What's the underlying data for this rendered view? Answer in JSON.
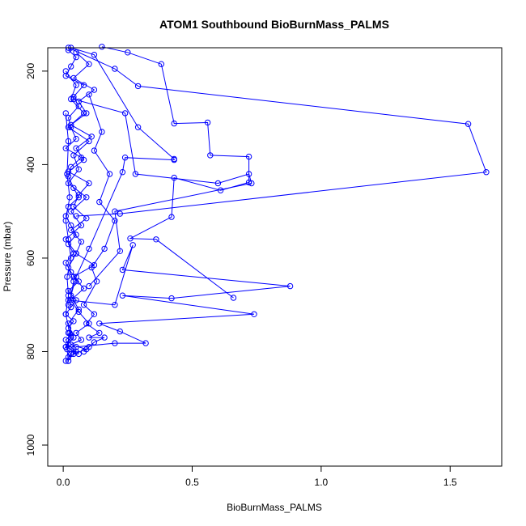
{
  "chart_data": {
    "type": "line",
    "title": "ATOM1 Southbound BioBurnMass_PALMS",
    "xlabel": "BioBurnMass_PALMS",
    "ylabel": "Pressure (mbar)",
    "xlim": [
      -0.06,
      1.7
    ],
    "ylim": [
      1045,
      150
    ],
    "y_reversed": true,
    "x_ticks": [
      0,
      0.5,
      1,
      1.5
    ],
    "x_tick_labels": [
      "0.0",
      "0.5",
      "1.0",
      "1.5"
    ],
    "y_ticks": [
      200,
      400,
      600,
      800,
      1000
    ],
    "y_tick_labels": [
      "200",
      "400",
      "600",
      "800",
      "1000"
    ],
    "grid": false,
    "line_color": "#0000ff",
    "marker": "open-circle",
    "series": [
      {
        "values_x": [
          0.02,
          0.05,
          0.03,
          0.01,
          0.08,
          0.04,
          0.06,
          0.02,
          0.03,
          0.05,
          0.01,
          0.07,
          0.03,
          0.02,
          0.04,
          0.06,
          0.02,
          0.01,
          0.03,
          0.05,
          0.02,
          0.04,
          0.01,
          0.03,
          0.06,
          0.02,
          0.05,
          0.03,
          0.01,
          0.04,
          0.02,
          0.03,
          0.01,
          0.02,
          0.04,
          0.03,
          0.02,
          0.05,
          0.01,
          0.03,
          0.02
        ],
        "values_y": [
          155,
          170,
          190,
          210,
          230,
          255,
          275,
          300,
          320,
          345,
          365,
          385,
          405,
          425,
          450,
          470,
          490,
          510,
          530,
          550,
          570,
          590,
          610,
          630,
          650,
          670,
          690,
          705,
          720,
          735,
          750,
          765,
          775,
          785,
          795,
          805,
          812,
          800,
          790,
          770,
          760
        ]
      },
      {
        "values_x": [
          0.05,
          0.1,
          0.04,
          0.12,
          0.06,
          0.09,
          0.03,
          0.11,
          0.05,
          0.08,
          0.02,
          0.1,
          0.06,
          0.04,
          0.09,
          0.03,
          0.07,
          0.05,
          0.12,
          0.04,
          0.08,
          0.03,
          0.06,
          0.1,
          0.05,
          0.07,
          0.03,
          0.09,
          0.04,
          0.06
        ],
        "values_y": [
          160,
          185,
          215,
          240,
          265,
          290,
          315,
          340,
          365,
          390,
          415,
          440,
          465,
          490,
          515,
          540,
          565,
          590,
          615,
          640,
          665,
          690,
          715,
          740,
          760,
          775,
          785,
          795,
          805,
          805
        ]
      },
      {
        "values_x": [
          0.15,
          0.25,
          0.38,
          0.43,
          0.56,
          0.57,
          0.72,
          0.72,
          0.61,
          0.43,
          0.42,
          0.26,
          0.36,
          0.66
        ],
        "values_y": [
          148,
          160,
          185,
          312,
          310,
          380,
          383,
          438,
          455,
          428,
          512,
          558,
          560,
          685
        ]
      },
      {
        "values_x": [
          0.02,
          0.2,
          0.29,
          1.57,
          1.64,
          0.22,
          0.05
        ],
        "values_y": [
          150,
          195,
          232,
          313,
          416,
          505,
          510
        ]
      },
      {
        "values_x": [
          0.03,
          0.12,
          0.29,
          0.43,
          0.43,
          0.24,
          0.23,
          0.1,
          0.05,
          0.02
        ],
        "values_y": [
          150,
          165,
          320,
          388,
          390,
          385,
          416,
          580,
          640,
          700
        ]
      },
      {
        "values_x": [
          0.04,
          0.24,
          0.28,
          0.6,
          0.72,
          0.73,
          0.2,
          0.22,
          0.1
        ],
        "values_y": [
          260,
          290,
          420,
          440,
          420,
          440,
          500,
          585,
          660
        ]
      },
      {
        "values_x": [
          0.02,
          0.2,
          0.27,
          0.23,
          0.88,
          0.42,
          0.23,
          0.74,
          0.14,
          0.22,
          0.32,
          0.2,
          0.05
        ],
        "values_y": [
          690,
          700,
          572,
          625,
          660,
          686,
          680,
          720,
          740,
          757,
          782,
          782,
          790
        ]
      },
      {
        "values_x": [
          0.01,
          0.05,
          0.03,
          0.08,
          0.02,
          0.1,
          0.04,
          0.06,
          0.02,
          0.09,
          0.03,
          0.07,
          0.01,
          0.05,
          0.02,
          0.04,
          0.03,
          0.06,
          0.02,
          0.04,
          0.01,
          0.03,
          0.02,
          0.01
        ],
        "values_y": [
          200,
          230,
          260,
          290,
          320,
          350,
          380,
          410,
          440,
          470,
          500,
          530,
          560,
          590,
          620,
          650,
          680,
          710,
          740,
          770,
          790,
          805,
          820,
          820
        ]
      },
      {
        "values_x": [
          0.1,
          0.15,
          0.12,
          0.18,
          0.14,
          0.2,
          0.16,
          0.11,
          0.13,
          0.08,
          0.12,
          0.09,
          0.14,
          0.1,
          0.16,
          0.12,
          0.1,
          0.08
        ],
        "values_y": [
          250,
          330,
          370,
          420,
          480,
          520,
          580,
          620,
          650,
          700,
          720,
          740,
          760,
          770,
          770,
          780,
          790,
          800
        ]
      },
      {
        "values_x": [
          0.01,
          0.02,
          0.015,
          0.025,
          0.01,
          0.02,
          0.03,
          0.015,
          0.02,
          0.01,
          0.025,
          0.015,
          0.02
        ],
        "values_y": [
          290,
          350,
          420,
          470,
          520,
          560,
          600,
          640,
          680,
          720,
          760,
          795,
          820
        ]
      }
    ]
  }
}
